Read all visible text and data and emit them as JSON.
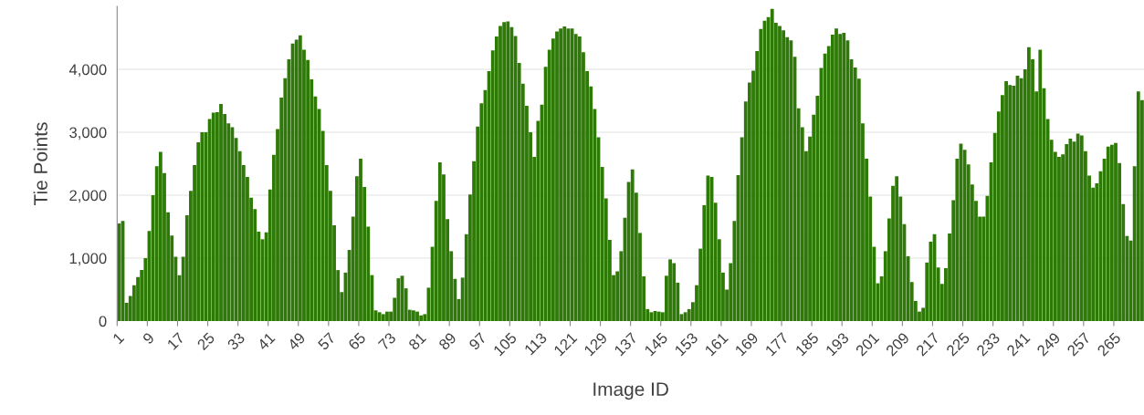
{
  "chart_data": {
    "type": "bar",
    "xlabel": "Image ID",
    "ylabel": "Tie Points",
    "categories": [
      "1",
      null,
      null,
      null,
      null,
      null,
      null,
      null,
      "9",
      null,
      null,
      null,
      null,
      null,
      null,
      null,
      "17",
      null,
      null,
      null,
      null,
      null,
      null,
      null,
      "25",
      null,
      null,
      null,
      null,
      null,
      null,
      null,
      "33",
      null,
      null,
      null,
      null,
      null,
      null,
      null,
      "41",
      null,
      null,
      null,
      null,
      null,
      null,
      null,
      "49",
      null,
      null,
      null,
      null,
      null,
      null,
      null,
      "57",
      null,
      null,
      null,
      null,
      null,
      null,
      null,
      "65",
      null,
      null,
      null,
      null,
      null,
      null,
      null,
      "73",
      null,
      null,
      null,
      null,
      null,
      null,
      null,
      "81",
      null,
      null,
      null,
      null,
      null,
      null,
      null,
      "89",
      null,
      null,
      null,
      null,
      null,
      null,
      null,
      "97",
      null,
      null,
      null,
      null,
      null,
      null,
      null,
      "105",
      null,
      null,
      null,
      null,
      null,
      null,
      null,
      "113",
      null,
      null,
      null,
      null,
      null,
      null,
      null,
      "121",
      null,
      null,
      null,
      null,
      null,
      null,
      null,
      "129",
      null,
      null,
      null,
      null,
      null,
      null,
      null,
      "137",
      null,
      null,
      null,
      null,
      null,
      null,
      null,
      "145",
      null,
      null,
      null,
      null,
      null,
      null,
      null,
      "153",
      null,
      null,
      null,
      null,
      null,
      null,
      null,
      "161",
      null,
      null,
      null,
      null,
      null,
      null,
      null,
      "169",
      null,
      null,
      null,
      null,
      null,
      null,
      null,
      "177",
      null,
      null,
      null,
      null,
      null,
      null,
      null,
      "185",
      null,
      null,
      null,
      null,
      null,
      null,
      null,
      "193",
      null,
      null,
      null,
      null,
      null,
      null,
      null,
      "201",
      null,
      null,
      null,
      null,
      null,
      null,
      null,
      "209",
      null,
      null,
      null,
      null,
      null,
      null,
      null,
      "217",
      null,
      null,
      null,
      null,
      null,
      null,
      null,
      "225",
      null,
      null,
      null,
      null,
      null,
      null,
      null,
      "233",
      null,
      null,
      null,
      null,
      null,
      null,
      null,
      "241",
      null,
      null,
      null,
      null,
      null,
      null,
      null,
      "249",
      null,
      null,
      null,
      null,
      null,
      null,
      null,
      "257",
      null,
      null,
      null,
      null,
      null,
      null,
      null,
      "265",
      null,
      null,
      null,
      null,
      null,
      null,
      null
    ],
    "values": [
      1550,
      1590,
      290,
      400,
      570,
      700,
      810,
      1000,
      1430,
      2000,
      2460,
      2690,
      2350,
      1730,
      1360,
      1020,
      730,
      1020,
      1680,
      2070,
      2480,
      2840,
      3000,
      3000,
      3210,
      3310,
      3320,
      3450,
      3290,
      3140,
      3080,
      2910,
      2700,
      2480,
      2290,
      1960,
      1780,
      1420,
      1300,
      1410,
      2090,
      2640,
      3050,
      3550,
      3860,
      4160,
      4410,
      4470,
      4540,
      4310,
      4150,
      3840,
      3570,
      3370,
      3020,
      2480,
      2070,
      1520,
      810,
      460,
      770,
      1130,
      1660,
      2300,
      2580,
      2130,
      1500,
      730,
      170,
      140,
      110,
      150,
      150,
      370,
      680,
      720,
      520,
      180,
      170,
      150,
      90,
      110,
      530,
      1180,
      1910,
      2520,
      2330,
      1620,
      1110,
      670,
      350,
      690,
      1380,
      2010,
      2540,
      3090,
      3460,
      3670,
      3970,
      4300,
      4520,
      4690,
      4750,
      4760,
      4670,
      4530,
      4100,
      3770,
      3420,
      3000,
      2610,
      3180,
      3440,
      4040,
      4310,
      4490,
      4600,
      4650,
      4680,
      4650,
      4650,
      4560,
      4520,
      4270,
      3970,
      3730,
      3370,
      2920,
      2450,
      1950,
      1290,
      730,
      790,
      1110,
      1640,
      2210,
      2410,
      2040,
      1400,
      710,
      190,
      140,
      160,
      150,
      140,
      720,
      980,
      920,
      610,
      110,
      140,
      190,
      300,
      570,
      1150,
      1840,
      2310,
      2290,
      1880,
      1300,
      770,
      500,
      920,
      1590,
      2320,
      2920,
      3490,
      3790,
      3980,
      4290,
      4640,
      4770,
      4830,
      4960,
      4740,
      4690,
      4620,
      4510,
      4460,
      4200,
      3380,
      3080,
      2700,
      2930,
      3280,
      3580,
      4020,
      4250,
      4370,
      4550,
      4650,
      4560,
      4580,
      4460,
      4160,
      4030,
      3850,
      3140,
      2580,
      1980,
      1180,
      600,
      710,
      1110,
      1630,
      2150,
      2300,
      1980,
      1540,
      1030,
      620,
      320,
      150,
      210,
      930,
      1260,
      1380,
      850,
      590,
      840,
      1390,
      1920,
      2580,
      2820,
      2720,
      2490,
      2170,
      1910,
      1660,
      1660,
      1990,
      2520,
      2990,
      3330,
      3590,
      3810,
      3750,
      3740,
      3900,
      3860,
      4000,
      4350,
      4160,
      3650,
      4310,
      3700,
      3210,
      2880,
      2690,
      2610,
      2650,
      2810,
      2900,
      2850,
      2980,
      2950,
      2700,
      2310,
      2120,
      2190,
      2380,
      2580,
      2770,
      2800,
      2830,
      2510,
      1860,
      1350,
      1280,
      2460,
      3650,
      3510
    ],
    "color": "#2e7a06",
    "ylim": [
      0,
      5000
    ],
    "yticks": [
      {
        "value": 0,
        "label": "0"
      },
      {
        "value": 1000,
        "label": "1,000"
      },
      {
        "value": 2000,
        "label": "2,000"
      },
      {
        "value": 3000,
        "label": "3,000"
      },
      {
        "value": 4000,
        "label": "4,000"
      }
    ],
    "grid": "y"
  }
}
